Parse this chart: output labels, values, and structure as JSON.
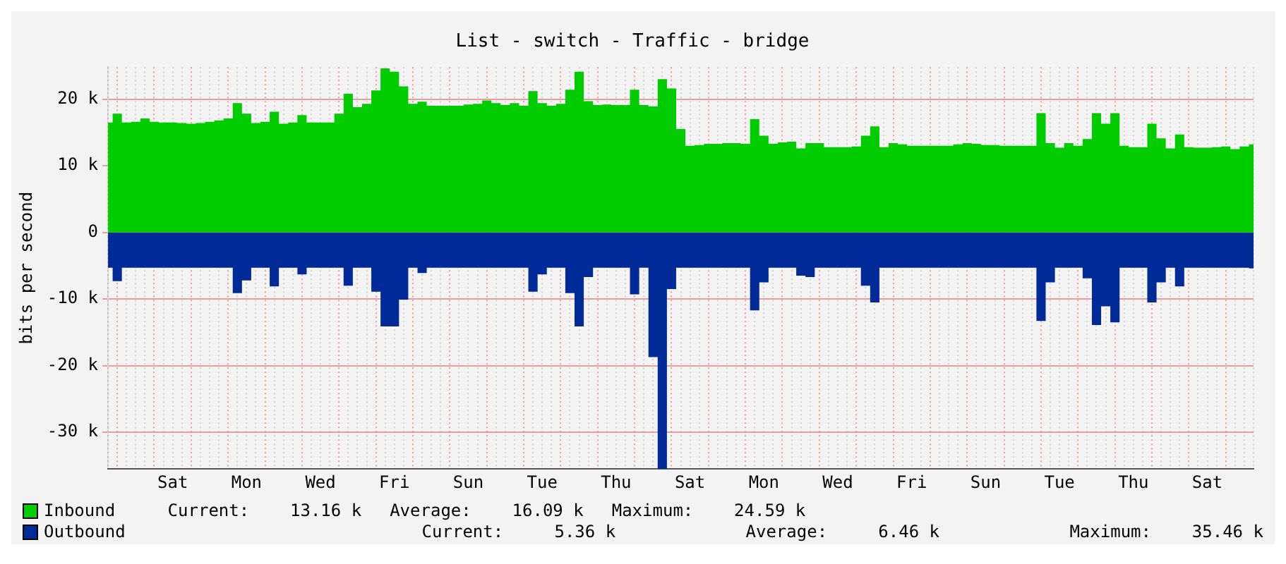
{
  "chart_data": {
    "type": "area",
    "title": "List - switch - Traffic - bridge",
    "ylabel": "bits per second",
    "categories": [
      null,
      null,
      null,
      null,
      null,
      null,
      null,
      "Sat",
      null,
      null,
      null,
      null,
      null,
      null,
      null,
      "Mon",
      null,
      null,
      null,
      null,
      null,
      null,
      null,
      "Wed",
      null,
      null,
      null,
      null,
      null,
      null,
      null,
      "Fri",
      null,
      null,
      null,
      null,
      null,
      null,
      null,
      "Sun",
      null,
      null,
      null,
      null,
      null,
      null,
      null,
      "Tue",
      null,
      null,
      null,
      null,
      null,
      null,
      null,
      "Thu",
      null,
      null,
      null,
      null,
      null,
      null,
      null,
      "Sat",
      null,
      null,
      null,
      null,
      null,
      null,
      null,
      "Mon",
      null,
      null,
      null,
      null,
      null,
      null,
      null,
      "Wed",
      null,
      null,
      null,
      null,
      null,
      null,
      null,
      "Fri",
      null,
      null,
      null,
      null,
      null,
      null,
      null,
      "Sun",
      null,
      null,
      null,
      null,
      null,
      null,
      null,
      "Tue",
      null,
      null,
      null,
      null,
      null,
      null,
      null,
      "Thu",
      null,
      null,
      null,
      null,
      null,
      null,
      null,
      "Sat",
      null,
      null,
      null,
      null,
      null
    ],
    "ylim": [
      -35500,
      24800
    ],
    "yticks": [
      {
        "value": -30000,
        "label": "-30 k"
      },
      {
        "value": -20000,
        "label": "-20 k"
      },
      {
        "value": -10000,
        "label": "-10 k"
      },
      0,
      {
        "value": 10000,
        "label": "10 k"
      },
      {
        "value": 20000,
        "label": "20 k"
      }
    ],
    "grid": true,
    "legend": "bottom",
    "series": [
      {
        "name": "Inbound",
        "color": "#00cc00",
        "values": [
          16500,
          17800,
          16500,
          16600,
          17100,
          16600,
          16500,
          16500,
          16400,
          16300,
          16400,
          16600,
          16800,
          17100,
          19400,
          17800,
          16400,
          16600,
          18100,
          16300,
          16500,
          17600,
          16500,
          16500,
          16500,
          17800,
          20800,
          18800,
          19300,
          21300,
          24600,
          24100,
          21900,
          19300,
          19600,
          19000,
          19000,
          19000,
          19000,
          19200,
          19300,
          19800,
          19400,
          19100,
          19400,
          19000,
          21200,
          19400,
          19000,
          19300,
          21400,
          24100,
          19700,
          19100,
          19200,
          19100,
          19100,
          21400,
          19100,
          18900,
          23000,
          21600,
          15500,
          13000,
          13100,
          13300,
          13300,
          13400,
          13400,
          13300,
          17000,
          14500,
          13300,
          13500,
          13600,
          12600,
          13400,
          13400,
          12800,
          12800,
          12800,
          12900,
          14500,
          15900,
          12800,
          13400,
          13200,
          13000,
          13000,
          13000,
          13000,
          13000,
          13200,
          13400,
          13300,
          13100,
          13100,
          13000,
          13000,
          13000,
          13000,
          17900,
          13400,
          12700,
          13400,
          13000,
          14000,
          17900,
          16300,
          17900,
          13000,
          12800,
          12800,
          16300,
          14100,
          12600,
          14700,
          12800,
          12700,
          12700,
          12800,
          12900,
          12500,
          12900,
          13200
        ]
      },
      {
        "name": "Outbound",
        "color": "#002a97",
        "values": [
          -5300,
          -7300,
          -5300,
          -5300,
          -5300,
          -5300,
          -5300,
          -5300,
          -5300,
          -5300,
          -5300,
          -5300,
          -5300,
          -5300,
          -9100,
          -7200,
          -5300,
          -5300,
          -8100,
          -5300,
          -5300,
          -6300,
          -5300,
          -5300,
          -5300,
          -5300,
          -8000,
          -5300,
          -5300,
          -8900,
          -14100,
          -14100,
          -10100,
          -5300,
          -6100,
          -5300,
          -5300,
          -5300,
          -5300,
          -5300,
          -5300,
          -5300,
          -5300,
          -5300,
          -5300,
          -5300,
          -8900,
          -6300,
          -5300,
          -5300,
          -9100,
          -14100,
          -6700,
          -5300,
          -5300,
          -5300,
          -5300,
          -9300,
          -5300,
          -18700,
          -35500,
          -8500,
          -5300,
          -5300,
          -5300,
          -5300,
          -5300,
          -5300,
          -5300,
          -5300,
          -11700,
          -7500,
          -5300,
          -5300,
          -5300,
          -6500,
          -6700,
          -5300,
          -5300,
          -5300,
          -5300,
          -5300,
          -8000,
          -10500,
          -5300,
          -5300,
          -5300,
          -5300,
          -5300,
          -5300,
          -5300,
          -5300,
          -5300,
          -5300,
          -5300,
          -5300,
          -5300,
          -5300,
          -5300,
          -5300,
          -5300,
          -13300,
          -7500,
          -5300,
          -5300,
          -5300,
          -6900,
          -13900,
          -11100,
          -13500,
          -5300,
          -5300,
          -5300,
          -10500,
          -7500,
          -5300,
          -8100,
          -5300,
          -5300,
          -5300,
          -5300,
          -5300,
          -5300,
          -5300,
          -5400
        ]
      }
    ],
    "annotations": [
      "Current:    13.16 k",
      "Average:    16.09 k",
      "Maximum:    24.59 k",
      "Current:     5.36 k",
      "Average:     6.46 k",
      "Maximum:    35.46 k"
    ]
  }
}
